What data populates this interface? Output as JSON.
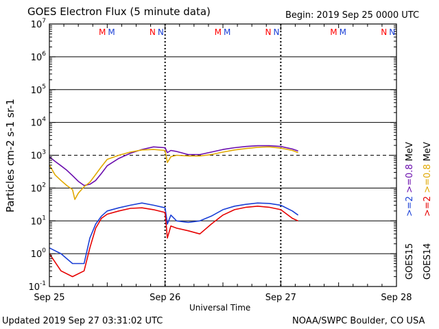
{
  "header": {
    "title": "GOES Electron Flux (5 minute data)",
    "begin": "Begin: 2019 Sep 25 0000 UTC"
  },
  "footer": {
    "updated": "Updated 2019 Sep 27 03:31:02 UTC",
    "credit": "NOAA/SWPC Boulder, CO USA"
  },
  "colors": {
    "goes15_high": "#6a0dad",
    "goes14_high": "#e0a800",
    "goes15_low": "#1a3fd6",
    "goes14_low": "#e60000",
    "noon_marker_M": "#ff0000",
    "midnight_marker_N": "#ff0000",
    "marker_blue": "#1a3fd6"
  },
  "chart_data": {
    "type": "line",
    "title": "GOES Electron Flux (5 minute data)",
    "xlabel": "Universal Time",
    "ylabel": "Particles cm-2 s-1 sr-1",
    "yscale": "log",
    "ylim_exp": [
      -1,
      7
    ],
    "xlim_days": [
      0,
      3
    ],
    "x_tick_labels": [
      "Sep 25",
      "Sep 26",
      "Sep 27",
      "Sep 28"
    ],
    "y_tick_exponents": [
      -1,
      0,
      1,
      2,
      3,
      4,
      5,
      6,
      7
    ],
    "y_tick_base": "10",
    "threshold_line_exp": 3,
    "grid": true,
    "day_markers": [
      {
        "labels": [
          "M",
          "M"
        ],
        "day": 0.5
      },
      {
        "labels": [
          "N",
          "N"
        ],
        "day": 0.93
      },
      {
        "labels": [
          "M",
          "M"
        ],
        "day": 1.5
      },
      {
        "labels": [
          "N",
          "N"
        ],
        "day": 1.93
      },
      {
        "labels": [
          "M",
          "M"
        ],
        "day": 2.5
      },
      {
        "labels": [
          "N",
          "N"
        ],
        "day": 2.93
      }
    ],
    "legend": {
      "goes15_label": "GOES15",
      "goes14_label": "GOES14",
      "low_energy": ">=2",
      "high_energy": ">=0.8",
      "unit": "MeV"
    },
    "series": [
      {
        "name": "GOES15 >=0.8 MeV",
        "color_key": "goes15_high",
        "x": [
          0,
          0.05,
          0.1,
          0.15,
          0.2,
          0.25,
          0.3,
          0.35,
          0.4,
          0.45,
          0.5,
          0.6,
          0.7,
          0.8,
          0.9,
          1.0,
          1.02,
          1.05,
          1.1,
          1.2,
          1.3,
          1.4,
          1.5,
          1.6,
          1.7,
          1.8,
          1.9,
          2.0,
          2.1,
          2.15
        ],
        "y": [
          900,
          650,
          480,
          350,
          240,
          160,
          120,
          130,
          170,
          280,
          480,
          800,
          1150,
          1500,
          1800,
          1700,
          1200,
          1400,
          1300,
          1050,
          1050,
          1250,
          1500,
          1700,
          1850,
          1950,
          1950,
          1850,
          1550,
          1350
        ]
      },
      {
        "name": "GOES14 >=0.8 MeV",
        "color_key": "goes14_high",
        "x": [
          0,
          0.05,
          0.1,
          0.15,
          0.2,
          0.22,
          0.25,
          0.3,
          0.35,
          0.4,
          0.45,
          0.5,
          0.6,
          0.7,
          0.8,
          0.9,
          1.0,
          1.02,
          1.05,
          1.1,
          1.2,
          1.3,
          1.4,
          1.5,
          1.6,
          1.7,
          1.8,
          1.9,
          2.0,
          2.1,
          2.15
        ],
        "y": [
          500,
          250,
          170,
          120,
          90,
          45,
          70,
          110,
          150,
          260,
          450,
          750,
          1000,
          1250,
          1450,
          1500,
          1400,
          600,
          900,
          1000,
          950,
          950,
          1050,
          1250,
          1450,
          1600,
          1750,
          1800,
          1650,
          1400,
          1200
        ]
      },
      {
        "name": "GOES15 >=2 MeV",
        "color_key": "goes15_low",
        "x": [
          0,
          0.1,
          0.2,
          0.3,
          0.35,
          0.4,
          0.45,
          0.5,
          0.6,
          0.7,
          0.8,
          0.9,
          1.0,
          1.02,
          1.05,
          1.1,
          1.2,
          1.3,
          1.4,
          1.5,
          1.6,
          1.7,
          1.8,
          1.9,
          2.0,
          2.1,
          2.15
        ],
        "y": [
          1.5,
          1.0,
          0.5,
          0.5,
          3,
          8,
          14,
          20,
          25,
          30,
          35,
          30,
          25,
          8,
          15,
          10,
          9,
          10,
          14,
          22,
          28,
          32,
          35,
          34,
          30,
          20,
          15
        ]
      },
      {
        "name": "GOES14 >=2 MeV",
        "color_key": "goes14_low",
        "x": [
          0,
          0.1,
          0.2,
          0.3,
          0.35,
          0.4,
          0.45,
          0.5,
          0.6,
          0.7,
          0.8,
          0.9,
          1.0,
          1.02,
          1.05,
          1.1,
          1.2,
          1.3,
          1.4,
          1.5,
          1.6,
          1.7,
          1.8,
          1.9,
          2.0,
          2.1,
          2.15
        ],
        "y": [
          1.0,
          0.3,
          0.2,
          0.3,
          1.5,
          6,
          12,
          16,
          20,
          24,
          25,
          22,
          18,
          3,
          7,
          6,
          5,
          4,
          8,
          15,
          22,
          26,
          28,
          26,
          22,
          12,
          10
        ]
      }
    ]
  }
}
